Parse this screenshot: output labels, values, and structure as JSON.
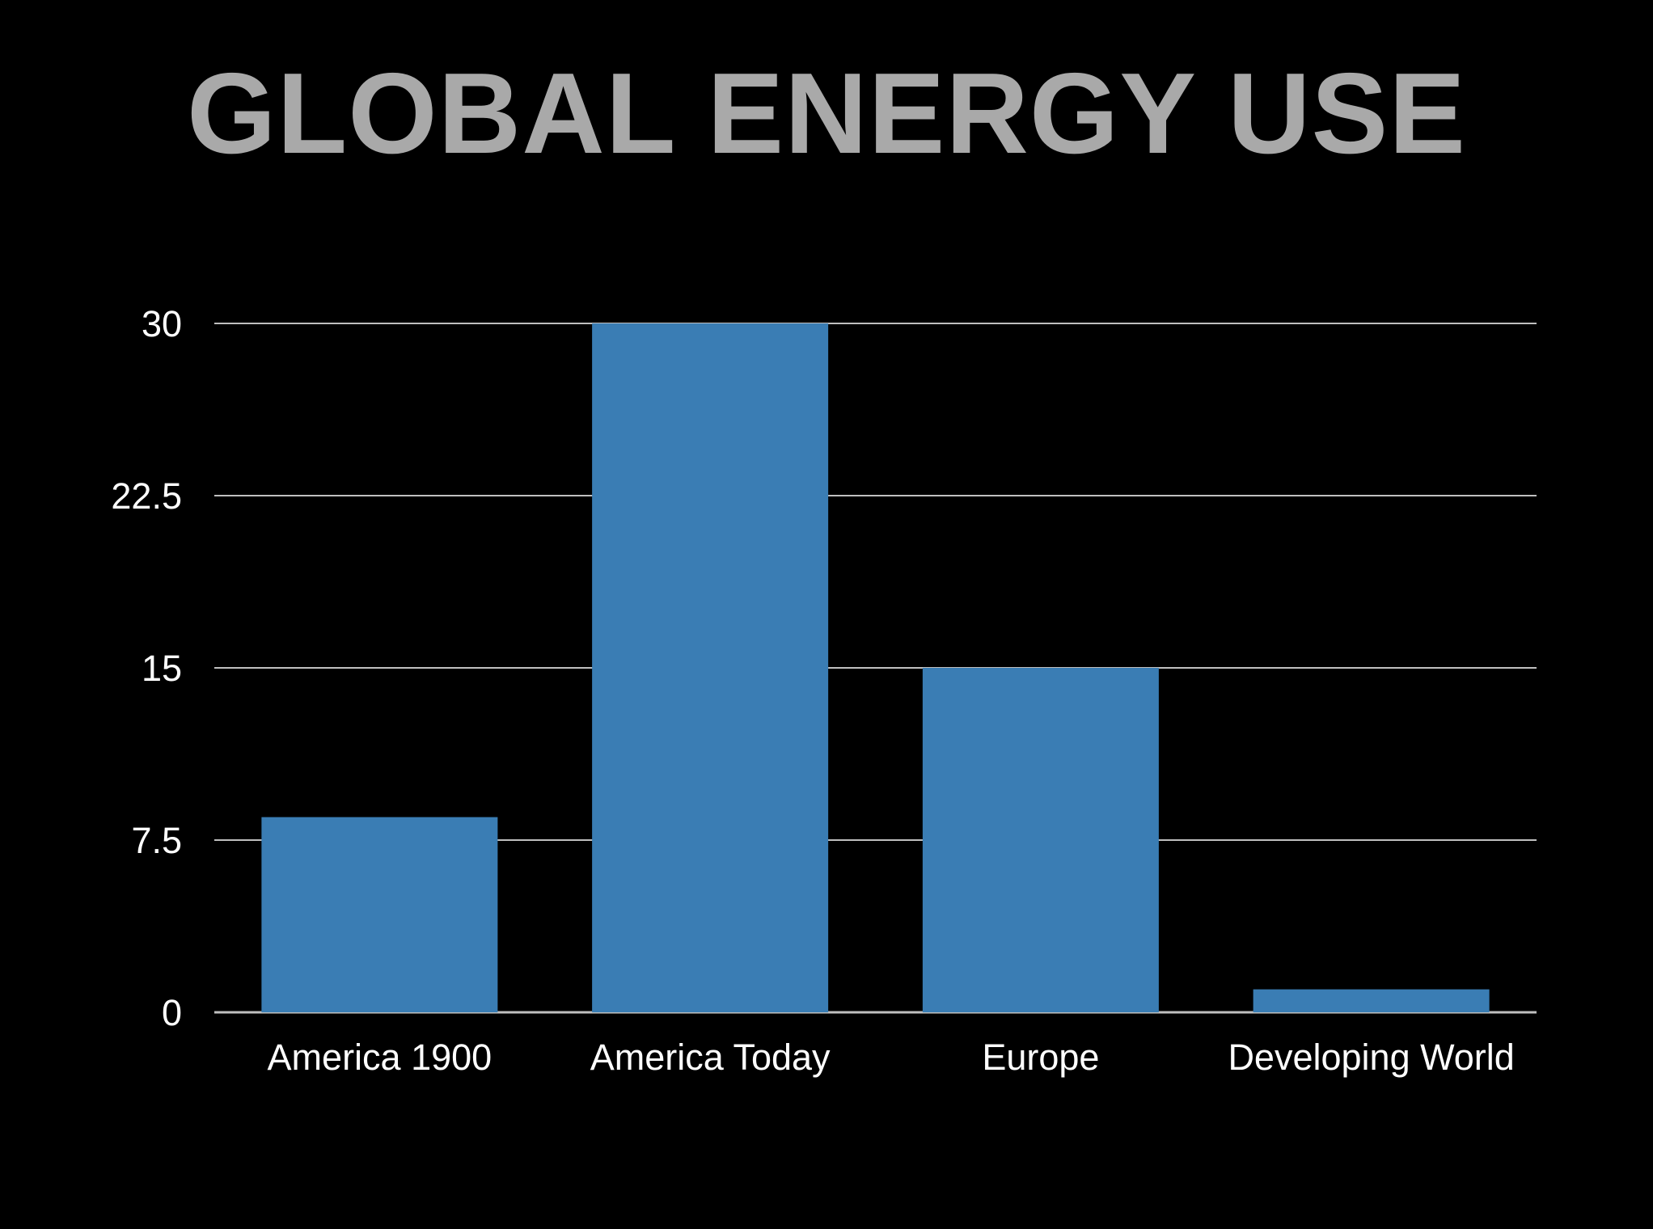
{
  "slide": {
    "title": "GLOBAL ENERGY USE"
  },
  "chart_data": {
    "type": "bar",
    "title": "",
    "xlabel": "",
    "ylabel": "",
    "categories": [
      "America 1900",
      "America Today",
      "Europe",
      "Developing World"
    ],
    "values": [
      8.5,
      30,
      15,
      1
    ],
    "ylim": [
      0,
      30
    ],
    "yticks": [
      0,
      7.5,
      15,
      22.5,
      30
    ],
    "ytick_labels": [
      "0",
      "7.5",
      "15",
      "22.5",
      "30"
    ],
    "grid": true,
    "legend": "none",
    "colors": {
      "bar": "#3a7db4",
      "grid": "#bfbfbf",
      "text": "#ffffff",
      "title": "#a9a9a9",
      "background": "#000000"
    }
  }
}
